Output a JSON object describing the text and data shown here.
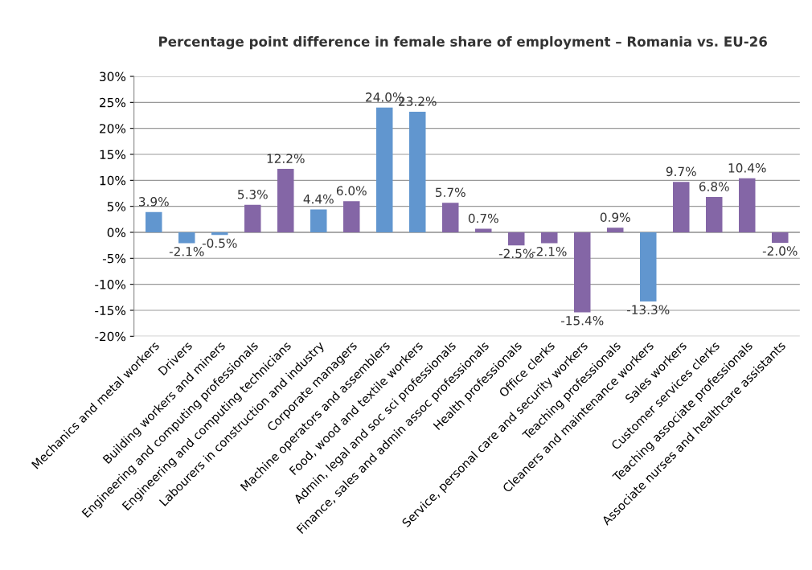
{
  "chart_data": {
    "type": "bar",
    "title": "Percentage point difference in female share of employment – Romania vs. EU-26",
    "categories": [
      "Mechanics and metal workers",
      "Drivers",
      "Building workers and miners",
      "Engineering and computing professionals",
      "Engineering and computing technicians",
      "Labourers in construction and industry",
      "Corporate managers",
      "Machine operators and assemblers",
      "Food, wood and textile workers",
      "Admin, legal and soc sci professionals",
      "Finance, sales and admin assoc professionals",
      "Health professionals",
      "Office clerks",
      "Service, personal care and security workers",
      "Teaching professionals",
      "Cleaners and maintenance workers",
      "Sales workers",
      "Customer services clerks",
      "Teaching associate professionals",
      "Associate nurses and healthcare assistants"
    ],
    "values": [
      3.9,
      -2.1,
      -0.5,
      5.3,
      12.2,
      4.4,
      6.0,
      24.0,
      23.2,
      5.7,
      0.7,
      -2.5,
      -2.1,
      -15.4,
      0.9,
      -13.3,
      9.7,
      6.8,
      10.4,
      -2.0
    ],
    "colors": [
      "#6196cf",
      "#6196cf",
      "#6196cf",
      "#8466a6",
      "#8466a6",
      "#6196cf",
      "#8466a6",
      "#6196cf",
      "#6196cf",
      "#8466a6",
      "#8466a6",
      "#8466a6",
      "#8466a6",
      "#8466a6",
      "#8466a6",
      "#6196cf",
      "#8466a6",
      "#8466a6",
      "#8466a6",
      "#8466a6"
    ],
    "value_labels": [
      "3.9%",
      "-2.1%",
      "-0.5%",
      "5.3%",
      "12.2%",
      "4.4%",
      "6.0%",
      "24.0%",
      "23.2%",
      "5.7%",
      "0.7%",
      "-2.5%",
      "-2.1%",
      "-15.4%",
      "0.9%",
      "-13.3%",
      "9.7%",
      "6.8%",
      "10.4%",
      "-2.0%"
    ],
    "ylim": [
      -20,
      30
    ],
    "yticks": [
      {
        "value": -20,
        "label": "-20%"
      },
      {
        "value": -15,
        "label": "-15%"
      },
      {
        "value": -10,
        "label": "-10%"
      },
      {
        "value": -5,
        "label": "-5%"
      },
      {
        "value": 0,
        "label": "0%"
      },
      {
        "value": 5,
        "label": "5%"
      },
      {
        "value": 10,
        "label": "10%"
      },
      {
        "value": 15,
        "label": "15%"
      },
      {
        "value": 20,
        "label": "20%"
      },
      {
        "value": 25,
        "label": "25%"
      },
      {
        "value": 30,
        "label": "30%"
      }
    ],
    "grid": "y"
  }
}
